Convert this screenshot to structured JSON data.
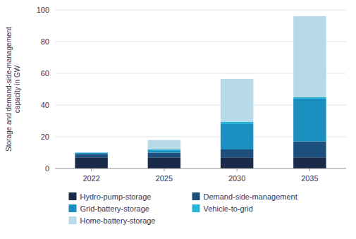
{
  "chart_data": {
    "type": "bar",
    "stacked": true,
    "categories": [
      "2022",
      "2025",
      "2030",
      "2035"
    ],
    "series": [
      {
        "name": "Hydro-pump-storage",
        "color": "#1a2b4a",
        "values": [
          7.0,
          7.0,
          7.0,
          7.0
        ]
      },
      {
        "name": "Demand-side-management",
        "color": "#1d4f7c",
        "values": [
          2.0,
          3.0,
          5.0,
          10.0
        ]
      },
      {
        "name": "Grid-battery-storage",
        "color": "#1a8fc0",
        "values": [
          1.0,
          1.5,
          16.0,
          27.0
        ]
      },
      {
        "name": "Vehicle-to-grid",
        "color": "#29b5d8",
        "values": [
          0.0,
          0.5,
          1.5,
          1.0
        ]
      },
      {
        "name": "Home-battery-storage",
        "color": "#b8d9e8",
        "values": [
          0.0,
          6.0,
          27.0,
          51.0
        ]
      }
    ],
    "y_label": "Storage and demand-side-management\ncapacity in GW",
    "ylim": [
      0,
      100
    ],
    "yticks": [
      0,
      20,
      40,
      60,
      80,
      100
    ],
    "grid": true,
    "legend": "bottom"
  }
}
